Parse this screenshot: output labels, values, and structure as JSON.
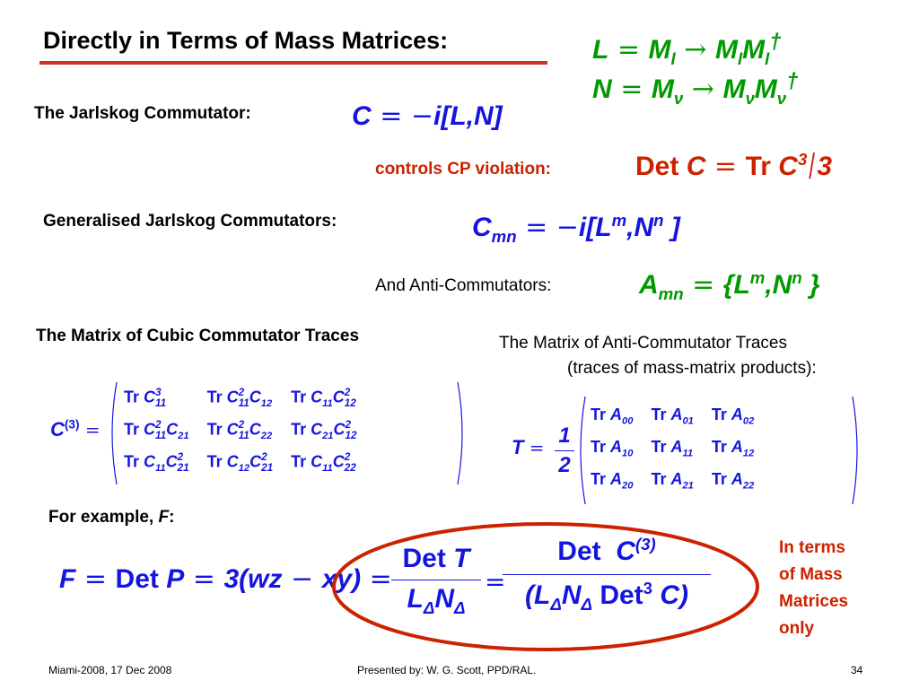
{
  "slide": {
    "title": "Directly in Terms of Mass Matrices:",
    "defs": {
      "l_def": {
        "lhs": "L",
        "m1": "M",
        "s1": "l",
        "m2": "M",
        "s2": "l",
        "m3": "M",
        "s3": "l",
        "dagger": "†"
      },
      "n_def": {
        "lhs": "N",
        "m1": "M",
        "s1": "ν",
        "m2": "M",
        "s2": "ν",
        "m3": "M",
        "s3": "ν",
        "dagger": "†"
      }
    },
    "jarlskog": {
      "label": "The Jarlskog Commutator:",
      "lhs": "C",
      "rhs": "i[L,N]"
    },
    "cp": {
      "label": "controls CP violation:",
      "det": "Det",
      "c": "C",
      "tr": "Tr",
      "c3": "C",
      "exp": "3",
      "den": "3"
    },
    "generalised": {
      "label": "Generalised Jarlskog Commutators:",
      "lhs": "C",
      "sub": "mn",
      "rhs_i": "i[L",
      "m": "m",
      "comma_n": ",N",
      "n": "n",
      "close": "]"
    },
    "anti": {
      "label": "And Anti-Commutators:",
      "lhs": "A",
      "sub": "mn",
      "open": "{L",
      "m": "m",
      "comma_n": ",N",
      "n": "n",
      "close": "}"
    },
    "cubic_label": "The Matrix of Cubic Commutator Traces",
    "anti_label_1": "The Matrix of Anti-Commutator Traces",
    "anti_label_2": "(traces of mass-matrix products):",
    "c3_matrix": {
      "lhs": "C",
      "lhs_sup": "(3)",
      "rows": [
        [
          "Tr C|3|11",
          "Tr C|2|11 C|12",
          "Tr C|11 C|2|12"
        ],
        [
          "Tr C|2|11 C|21",
          "Tr C|2|11 C|22",
          "Tr C|21 C|2|12"
        ],
        [
          "Tr C|11 C|2|21",
          "Tr C|12 C|2|21",
          "Tr C|11 C|2|22"
        ]
      ]
    },
    "t_matrix": {
      "lhs": "T",
      "frac_num": "1",
      "frac_den": "2",
      "rows": [
        [
          "Tr A|00",
          "Tr A|01",
          "Tr A|02"
        ],
        [
          "Tr A|10",
          "Tr A|11",
          "Tr A|12"
        ],
        [
          "Tr A|20",
          "Tr A|21",
          "Tr A|22"
        ]
      ]
    },
    "example": {
      "label_pre": "For example, ",
      "label_f": "F",
      "label_post": ":"
    },
    "f_eq": {
      "f": "F",
      "det": "Det",
      "p": "P",
      "mid": "3(wz",
      "xy": "xy)",
      "num1": "Det",
      "num1_t": "T",
      "den1": "L",
      "den1_sub1": "Δ",
      "den1_n": "N",
      "den1_sub2": "Δ",
      "num2": "Det",
      "num2_c": "C",
      "num2_sup": "(3)",
      "den2_open": "(L",
      "den2_sub1": "Δ",
      "den2_n": "N",
      "den2_sub2": "Δ",
      "den2_det": "Det",
      "den2_exp": "3",
      "den2_c": "C)"
    },
    "note": [
      "In terms",
      "of Mass",
      "Matrices",
      "only"
    ],
    "footer": {
      "left": "Miami-2008, 17 Dec 2008",
      "center": "Presented by:  W. G. Scott, PPD/RAL.",
      "right": "34"
    },
    "colors": {
      "green": "#009900",
      "blue": "#1515e0",
      "red": "#cc2200",
      "rule": "#cc3322"
    }
  }
}
